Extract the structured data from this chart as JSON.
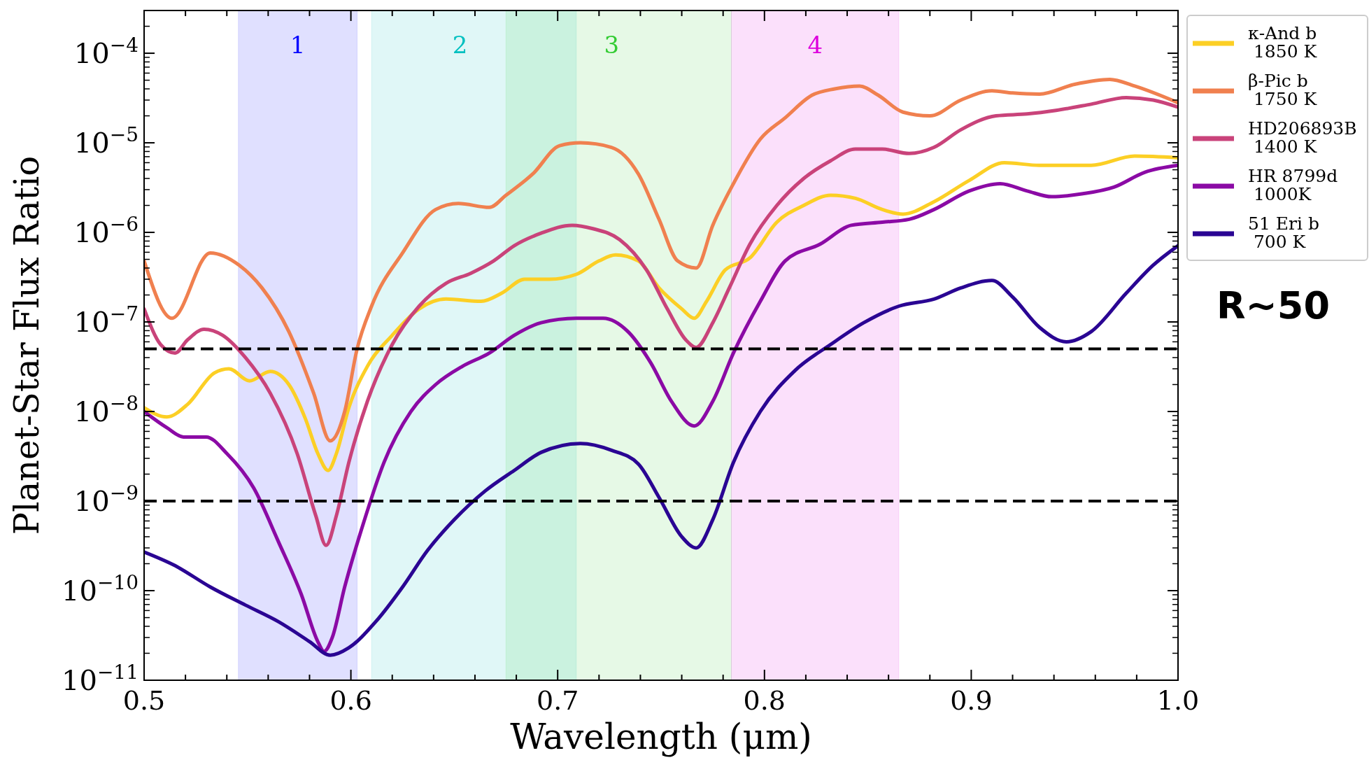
{
  "chart_data": {
    "type": "line",
    "xlabel": "Wavelength (μm)",
    "ylabel": "Planet-Star Flux Ratio",
    "log": "y",
    "xlim": [
      0.5,
      1.0
    ],
    "ylim": [
      1e-11,
      0.0003
    ],
    "xticks": [
      0.5,
      {
        "value": 0.52,
        "label": null
      },
      {
        "value": 0.54,
        "label": null
      },
      {
        "value": 0.56,
        "label": null
      },
      {
        "value": 0.58,
        "label": null
      },
      0.6,
      {
        "value": 0.62,
        "label": null
      },
      {
        "value": 0.64,
        "label": null
      },
      {
        "value": 0.66,
        "label": null
      },
      {
        "value": 0.68,
        "label": null
      },
      0.7,
      {
        "value": 0.72,
        "label": null
      },
      {
        "value": 0.74,
        "label": null
      },
      {
        "value": 0.76,
        "label": null
      },
      {
        "value": 0.78,
        "label": null
      },
      0.8,
      {
        "value": 0.82,
        "label": null
      },
      {
        "value": 0.84,
        "label": null
      },
      {
        "value": 0.86,
        "label": null
      },
      {
        "value": 0.88,
        "label": null
      },
      0.9,
      {
        "value": 0.92,
        "label": null
      },
      {
        "value": 0.94,
        "label": null
      },
      {
        "value": 0.96,
        "label": null
      },
      {
        "value": 0.98,
        "label": null
      },
      {
        "value": 1.0,
        "label": "1.0"
      }
    ],
    "yticks": [
      {
        "value": 1e-11,
        "label": "10$^{−11}$"
      },
      {
        "value": 1e-10,
        "label": "10$^{−10}$"
      },
      {
        "value": 1e-09,
        "label": "10$^{−9}$"
      },
      {
        "value": 1e-08,
        "label": "10$^{−8}$"
      },
      {
        "value": 1e-07,
        "label": "10$^{−7}$"
      },
      {
        "value": 1e-06,
        "label": "10$^{−6}$"
      },
      {
        "value": 1e-05,
        "label": "10$^{−5}$"
      },
      {
        "value": 0.0001,
        "label": "10$^{−4}$"
      }
    ],
    "grid": false,
    "legend": "top right",
    "line_style": "solid",
    "marker": "none",
    "bands": [
      {
        "axis": "x",
        "from": 0.5456,
        "to": 0.603,
        "label": "1",
        "color": "#0000ff"
      },
      {
        "axis": "x",
        "from": 0.61,
        "to": 0.709,
        "label": "2",
        "color": "#00c0c0"
      },
      {
        "axis": "x",
        "from": 0.675,
        "to": 0.784,
        "label": "3",
        "color": "#33cc33"
      },
      {
        "axis": "x",
        "from": 0.784,
        "to": 0.865,
        "label": "4",
        "color": "#dd00dd"
      }
    ],
    "ref_lines": [
      {
        "axis": "y",
        "value": 5e-08,
        "color": "#000000",
        "line_style": "dashed"
      },
      {
        "axis": "y",
        "value": 1e-09,
        "color": "#000000",
        "line_style": "dashed"
      }
    ],
    "annotations": [
      "R~50"
    ],
    "series": [
      {
        "name": "κ-And b\n 1850 K",
        "color": "#fccf25",
        "x": [
          0.5,
          0.511,
          0.521,
          0.534,
          0.541,
          0.551,
          0.561,
          0.57,
          0.578,
          0.584,
          0.589,
          0.593,
          0.599,
          0.608,
          0.62,
          0.633,
          0.646,
          0.663,
          0.673,
          0.684,
          0.696,
          0.709,
          0.72,
          0.728,
          0.739,
          0.749,
          0.76,
          0.766,
          0.772,
          0.781,
          0.793,
          0.806,
          0.819,
          0.832,
          0.844,
          0.857,
          0.867,
          0.882,
          0.899,
          0.916,
          0.933,
          0.958,
          0.979,
          1.0
        ],
        "values": [
          1.1e-08,
          8.7e-09,
          1.2e-08,
          2.7e-08,
          3e-08,
          2.2e-08,
          2.8e-08,
          2e-08,
          8.3e-09,
          3.4e-09,
          2.2e-09,
          3.4e-09,
          1.1e-08,
          3.2e-08,
          7.1e-08,
          1.4e-07,
          1.8e-07,
          1.7e-07,
          2.1e-07,
          3e-07,
          3e-07,
          3.4e-07,
          4.8e-07,
          5.6e-07,
          4.8e-07,
          2.4e-07,
          1.4e-07,
          1.1e-07,
          1.7e-07,
          3.8e-07,
          5.2e-07,
          1.3e-06,
          2e-06,
          2.6e-06,
          2.4e-06,
          1.8e-06,
          1.6e-06,
          2.2e-06,
          3.8e-06,
          6e-06,
          5.6e-06,
          5.6e-06,
          7.1e-06,
          6.8e-06
        ]
      },
      {
        "name": "β-Pic b\n 1750 K",
        "color": "#f0804f",
        "x": [
          0.5,
          0.5135,
          0.532,
          0.546,
          0.557,
          0.57,
          0.582,
          0.59,
          0.597,
          0.603,
          0.61,
          0.625,
          0.641,
          0.652,
          0.667,
          0.675,
          0.688,
          0.701,
          0.711,
          0.726,
          0.739,
          0.749,
          0.758,
          0.767,
          0.775,
          0.785,
          0.798,
          0.81,
          0.823,
          0.834,
          0.846,
          0.855,
          0.867,
          0.88,
          0.895,
          0.91,
          0.92,
          0.933,
          0.95,
          0.967,
          0.979,
          1.0
        ],
        "values": [
          4.8e-07,
          1.1e-07,
          5.9e-07,
          4.3e-07,
          2.4e-07,
          7.8e-08,
          1.6e-08,
          4.7e-09,
          1e-08,
          5e-08,
          1.5e-07,
          5.9e-07,
          1.8e-06,
          2.1e-06,
          1.9e-06,
          2.6e-06,
          4.5e-06,
          9.3e-06,
          1e-05,
          8.9e-06,
          4.5e-06,
          1.4e-06,
          4.8e-07,
          4e-07,
          1.2e-06,
          3.5e-06,
          1.1e-05,
          1.9e-05,
          3.4e-05,
          4e-05,
          4.3e-05,
          3.4e-05,
          2.2e-05,
          2e-05,
          3e-05,
          3.8e-05,
          3.6e-05,
          3.5e-05,
          4.5e-05,
          5.1e-05,
          4.3e-05,
          2.8e-05
        ]
      },
      {
        "name": "HD206893B\n 1400 K",
        "color": "#c9437a",
        "x": [
          0.5,
          0.508,
          0.515,
          0.521,
          0.529,
          0.538,
          0.549,
          0.561,
          0.574,
          0.583,
          0.588,
          0.593,
          0.599,
          0.608,
          0.62,
          0.633,
          0.646,
          0.658,
          0.669,
          0.679,
          0.692,
          0.707,
          0.717,
          0.73,
          0.743,
          0.753,
          0.762,
          0.767,
          0.775,
          0.783,
          0.793,
          0.806,
          0.819,
          0.832,
          0.844,
          0.857,
          0.87,
          0.882,
          0.895,
          0.912,
          0.927,
          0.941,
          0.958,
          0.975,
          0.988,
          1.0
        ],
        "values": [
          1.4e-07,
          5.6e-08,
          4.5e-08,
          6.3e-08,
          8.3e-08,
          7.1e-08,
          4e-08,
          1.6e-08,
          3.4e-09,
          6.9e-10,
          3.2e-10,
          6.9e-10,
          2.7e-09,
          1.3e-08,
          5.6e-08,
          1.5e-07,
          2.7e-07,
          3.5e-07,
          4.8e-07,
          7.1e-07,
          9.8e-07,
          1.2e-06,
          1.1e-06,
          8.3e-07,
          3.8e-07,
          1.4e-07,
          6.3e-08,
          5.2e-08,
          9.8e-08,
          2.4e-07,
          7.4e-07,
          2e-06,
          4e-06,
          6.3e-06,
          8.5e-06,
          8.5e-06,
          7.6e-06,
          8.9e-06,
          1.4e-05,
          2e-05,
          2.1e-05,
          2.3e-05,
          2.7e-05,
          3.2e-05,
          3e-05,
          2.5e-05
        ]
      },
      {
        "name": "HR 8799d\n 1000K",
        "color": "#8b0aa5",
        "x": [
          0.5,
          0.511,
          0.519,
          0.53,
          0.54,
          0.553,
          0.565,
          0.576,
          0.584,
          0.587,
          0.591,
          0.597,
          0.606,
          0.616,
          0.629,
          0.641,
          0.654,
          0.667,
          0.679,
          0.692,
          0.709,
          0.722,
          0.734,
          0.745,
          0.755,
          0.766,
          0.775,
          0.785,
          0.798,
          0.81,
          0.827,
          0.842,
          0.857,
          0.87,
          0.882,
          0.899,
          0.914,
          0.927,
          0.939,
          0.954,
          0.969,
          0.984,
          1.0
        ],
        "values": [
          1e-08,
          6.6e-09,
          5.2e-09,
          5.2e-09,
          3.4e-09,
          1.4e-09,
          3.5e-10,
          9.1e-11,
          2.7e-11,
          2.1e-11,
          3e-11,
          1.1e-10,
          5.6e-10,
          2.7e-09,
          1e-08,
          2e-08,
          3.2e-08,
          4.5e-08,
          7.1e-08,
          9.8e-08,
          1.1e-07,
          1.1e-07,
          7.8e-08,
          3.5e-08,
          1.3e-08,
          6.9e-09,
          1.3e-08,
          4.5e-08,
          1.7e-07,
          4.8e-07,
          7.4e-07,
          1.2e-06,
          1.3e-06,
          1.4e-06,
          1.8e-06,
          2.9e-06,
          3.5e-06,
          2.9e-06,
          2.5e-06,
          2.7e-06,
          3.2e-06,
          4.7e-06,
          5.6e-06
        ]
      },
      {
        "name": "51 Eri b\n 700 K",
        "color": "#2a0593",
        "x": [
          0.5,
          0.515,
          0.532,
          0.549,
          0.565,
          0.58,
          0.59,
          0.599,
          0.612,
          0.625,
          0.637,
          0.65,
          0.665,
          0.679,
          0.692,
          0.711,
          0.726,
          0.739,
          0.749,
          0.76,
          0.767,
          0.775,
          0.785,
          0.798,
          0.815,
          0.832,
          0.848,
          0.865,
          0.882,
          0.895,
          0.91,
          0.92,
          0.933,
          0.946,
          0.958,
          0.975,
          0.988,
          1.0
        ],
        "values": [
          2.7e-10,
          1.9e-10,
          1.1e-10,
          6.9e-11,
          4.5e-11,
          2.7e-11,
          1.9e-11,
          2.3e-11,
          4.5e-11,
          1.1e-10,
          2.8e-10,
          6.2e-10,
          1.3e-09,
          2.2e-09,
          3.5e-09,
          4.4e-09,
          3.7e-09,
          2.6e-09,
          1.1e-09,
          4e-10,
          3e-10,
          6.2e-10,
          2.7e-09,
          1e-08,
          2.9e-08,
          5.6e-08,
          9.8e-08,
          1.5e-07,
          1.8e-07,
          2.4e-07,
          2.9e-07,
          1.9e-07,
          8.7e-08,
          6e-08,
          7.8e-08,
          2.1e-07,
          4.3e-07,
          7.1e-07
        ]
      }
    ]
  }
}
